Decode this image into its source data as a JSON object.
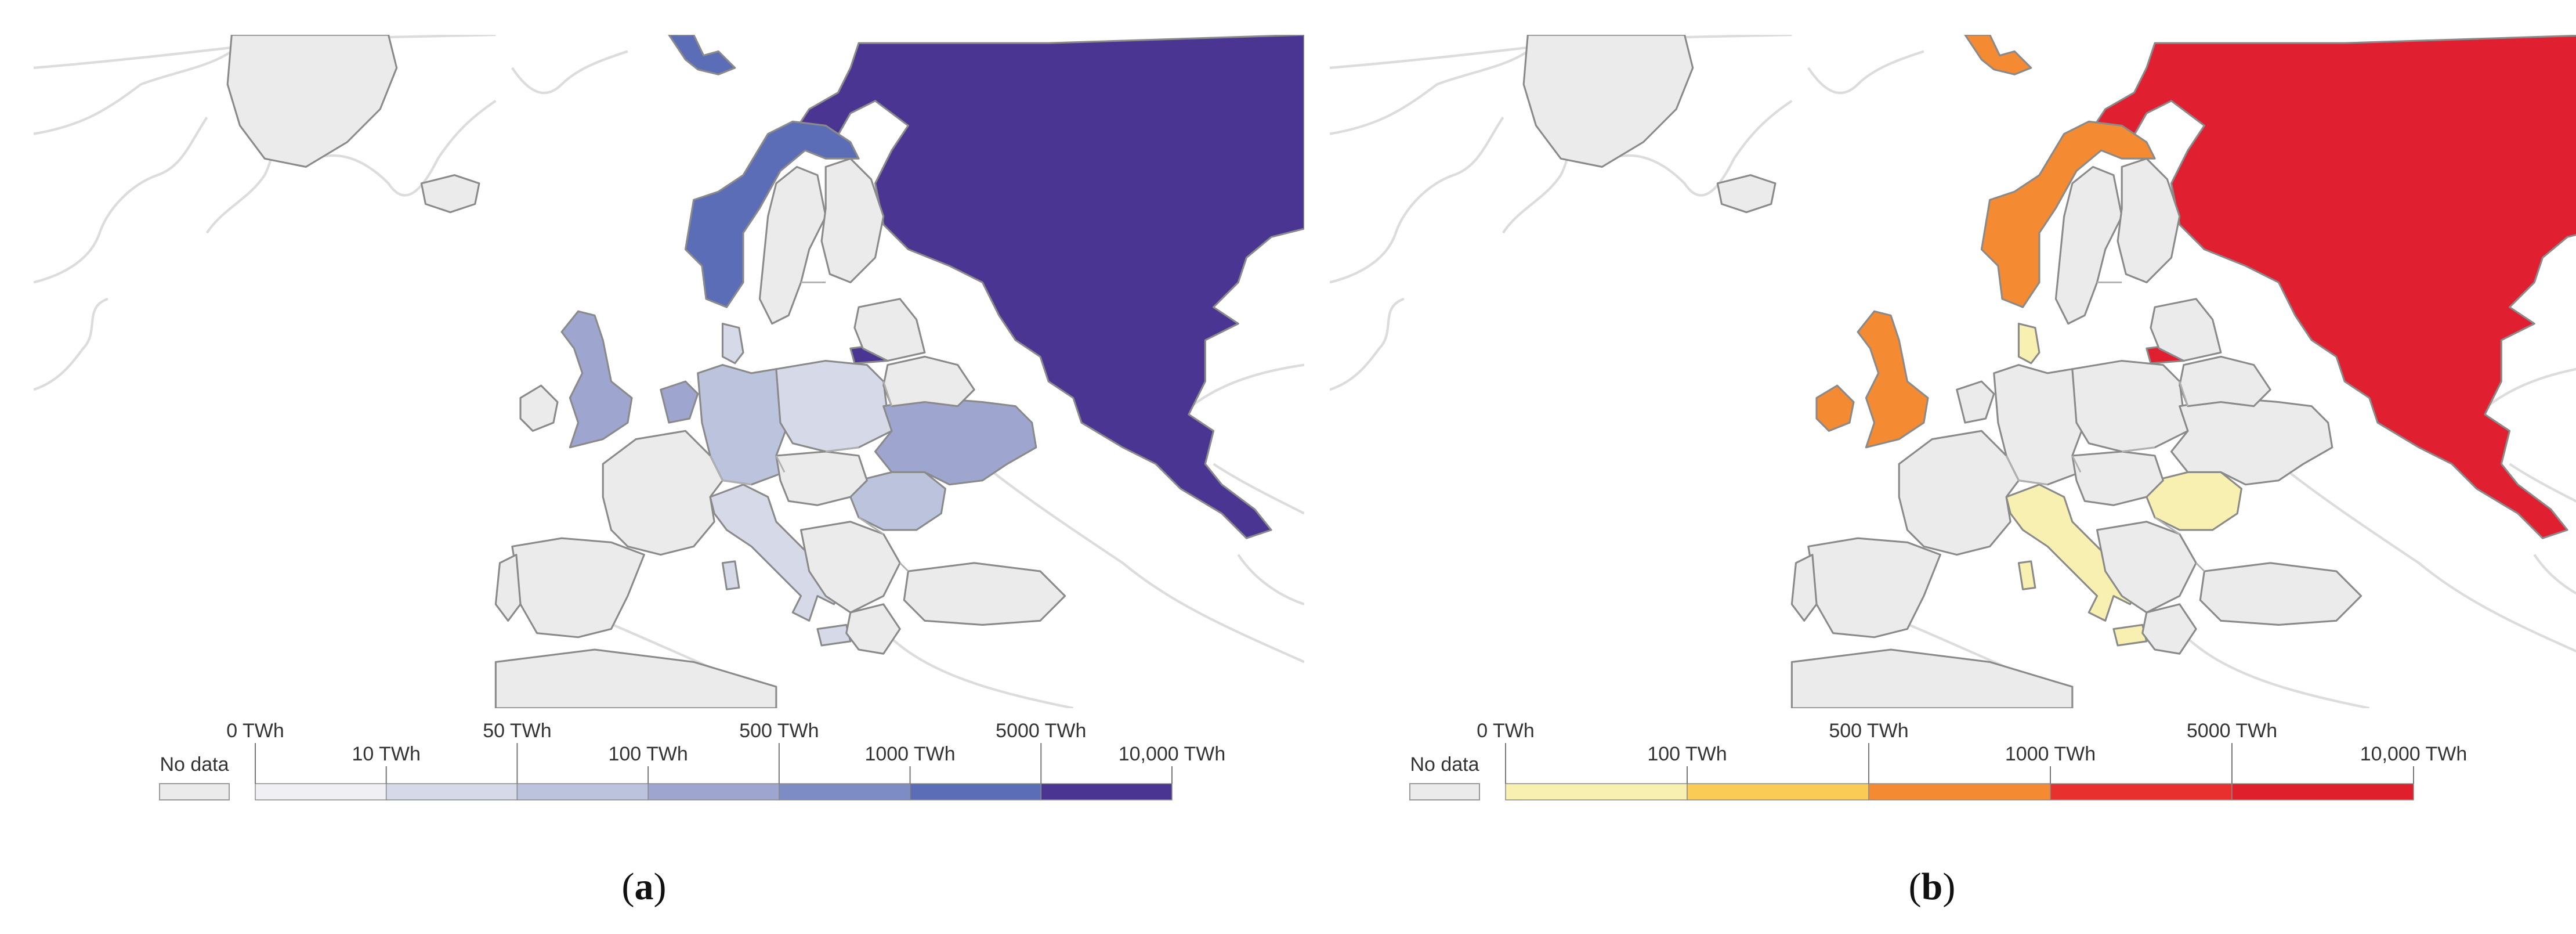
{
  "panels": [
    {
      "id": "a",
      "caption_letter": "a",
      "legend": {
        "no_data_label": "No data",
        "bins": [
          {
            "from_label": "0 TWh",
            "color": "#f0f0f4"
          },
          {
            "from_label": "10 TWh",
            "color": "#d6d9e7"
          },
          {
            "from_label": "50 TWh",
            "color": "#bcc3dd"
          },
          {
            "from_label": "100 TWh",
            "color": "#9ea6d0"
          },
          {
            "from_label": "500 TWh",
            "color": "#7d8cc4"
          },
          {
            "from_label": "1000 TWh",
            "color": "#5b6db6"
          },
          {
            "from_label": "5000 TWh",
            "color": "#4b3593"
          }
        ],
        "end_label": "10,000 TWh"
      },
      "countries": {
        "Russia": "#4b3593",
        "Norway": "#5b6db6",
        "Svalbard": "#5b6db6",
        "United Kingdom": "#9ea6d0",
        "Netherlands": "#9ea6d0",
        "Ukraine": "#9ea6d0",
        "Germany": "#bcc3dd",
        "Poland": "#d6d9e7",
        "Romania": "#bcc3dd",
        "Italy": "#d6d9e7",
        "Denmark": "#d6d9e7",
        "Kaliningrad": "#4b3593"
      }
    },
    {
      "id": "b",
      "caption_letter": "b",
      "legend": {
        "no_data_label": "No data",
        "bins": [
          {
            "from_label": "0 TWh",
            "color": "#f7f0b0"
          },
          {
            "from_label": "100 TWh",
            "color": "#fbcc55"
          },
          {
            "from_label": "500 TWh",
            "color": "#f48a32"
          },
          {
            "from_label": "1000 TWh",
            "color": "#e8312f"
          },
          {
            "from_label": "5000 TWh",
            "color": "#e01f2d"
          }
        ],
        "end_label": "10,000 TWh"
      },
      "countries": {
        "Russia": "#e02030",
        "Norway": "#f48a32",
        "Svalbard": "#f48a32",
        "United Kingdom": "#f48a32",
        "Ireland": "#f48a32",
        "Denmark": "#f7f0b0",
        "Italy": "#f7f0b0",
        "Romania": "#f7f0b0",
        "Kaliningrad": "#e02030"
      }
    }
  ],
  "colors": {
    "no_data": "#ebebeb",
    "ocean": "#ffffff",
    "coastline": "#dcdcdc"
  }
}
